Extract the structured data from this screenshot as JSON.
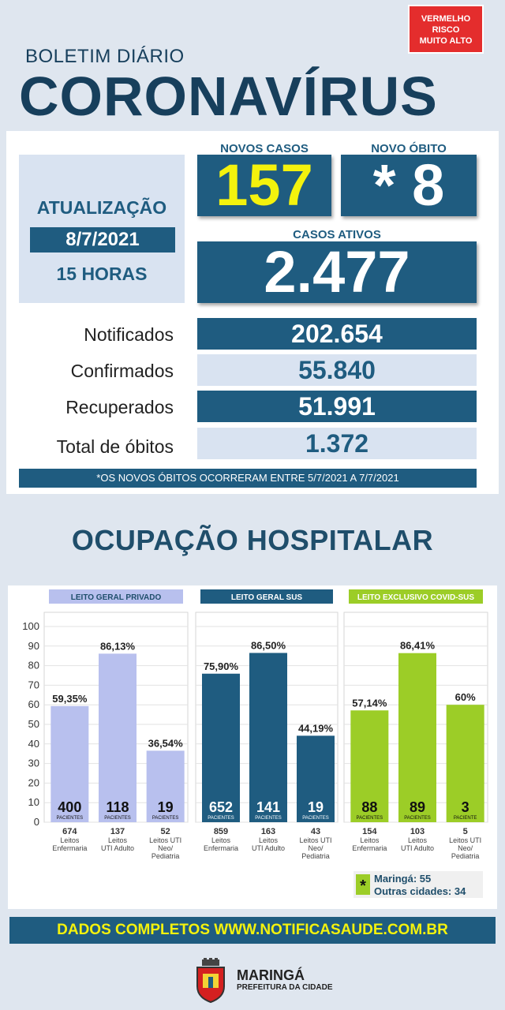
{
  "risk_badge": [
    "VERMELHO",
    "RISCO",
    "MUITO ALTO"
  ],
  "header": {
    "bulletin": "BOLETIM DIÁRIO",
    "title": "CORONAVÍRUS"
  },
  "update": {
    "label": "ATUALIZAÇÃO",
    "date": "8/7/2021",
    "hour": "15 HORAS"
  },
  "new_cases": {
    "label": "NOVOS CASOS",
    "value": "157"
  },
  "new_death": {
    "label": "NOVO ÓBITO",
    "value": "* 8"
  },
  "active_cases": {
    "label": "CASOS ATIVOS",
    "value": "2.477"
  },
  "totals": [
    {
      "label": "Notificados",
      "value": "202.654"
    },
    {
      "label": "Confirmados",
      "value": "55.840"
    },
    {
      "label": "Recuperados",
      "value": "51.991"
    },
    {
      "label": "Total de óbitos",
      "value": "1.372"
    }
  ],
  "footnote": "*OS NOVOS ÓBITOS OCORRERAM ENTRE 5/7/2021 A 7/7/2021",
  "hospital_title": "OCUPAÇÃO HOSPITALAR",
  "chart_data": {
    "type": "bar",
    "ylim": [
      0,
      100
    ],
    "yticks": [
      0,
      10,
      20,
      30,
      40,
      50,
      60,
      70,
      80,
      90,
      100
    ],
    "groups": [
      {
        "name": "LEITO GERAL PRIVADO",
        "color": "#b8c0ee",
        "bars": [
          {
            "percent": 59.35,
            "percent_label": "59,35%",
            "patients": "400",
            "beds": "674",
            "category": [
              "Leitos",
              "Enfermaria"
            ]
          },
          {
            "percent": 86.13,
            "percent_label": "86,13%",
            "patients": "118",
            "beds": "137",
            "category": [
              "Leitos",
              "UTI Adulto"
            ]
          },
          {
            "percent": 36.54,
            "percent_label": "36,54%",
            "patients": "19",
            "beds": "52",
            "category": [
              "Leitos UTI",
              "Neo/",
              "Pediatria"
            ]
          }
        ]
      },
      {
        "name": "LEITO GERAL SUS",
        "color": "#1f5c80",
        "bars": [
          {
            "percent": 75.9,
            "percent_label": "75,90%",
            "patients": "652",
            "beds": "859",
            "category": [
              "Leitos",
              "Enfermaria"
            ]
          },
          {
            "percent": 86.5,
            "percent_label": "86,50%",
            "patients": "141",
            "beds": "163",
            "category": [
              "Leitos",
              "UTI Adulto"
            ]
          },
          {
            "percent": 44.19,
            "percent_label": "44,19%",
            "patients": "19",
            "beds": "43",
            "category": [
              "Leitos UTI",
              "Neo/",
              "Pediatria"
            ]
          }
        ]
      },
      {
        "name": "LEITO EXCLUSIVO COVID-SUS",
        "color": "#9ccd27",
        "bars": [
          {
            "percent": 57.14,
            "percent_label": "57,14%",
            "patients": "88",
            "beds": "154",
            "category": [
              "Leitos",
              "Enfermaria"
            ]
          },
          {
            "percent": 86.41,
            "percent_label": "86,41%",
            "patients": "89",
            "beds": "103",
            "category": [
              "Leitos",
              "UTI Adulto"
            ]
          },
          {
            "percent": 60,
            "percent_label": "60%",
            "patients": "3",
            "beds": "5",
            "category": [
              "Leitos UTI",
              "Neo/",
              "Pediatria"
            ]
          }
        ]
      }
    ],
    "patients_word": "PACIENTES",
    "patients_word_single": "PACIENTE",
    "legend": {
      "marker": "*",
      "lines": [
        "Maringá: 55",
        "Outras cidades: 34"
      ]
    }
  },
  "bottom_bar": "DADOS COMPLETOS  WWW.NOTIFICASAUDE.COM.BR",
  "city": {
    "name": "MARINGÁ",
    "sub": "PREFEITURA DA CIDADE"
  },
  "colors": {
    "dark_blue": "#1f5c80",
    "light_blue": "#d9e3f1",
    "yellow": "#f4f20d",
    "red": "#e42d2d"
  }
}
